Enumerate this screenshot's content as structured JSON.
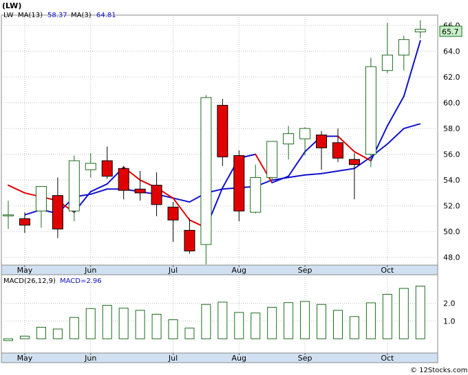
{
  "header": {
    "ticker": "(LW)",
    "legend_ticker": "LW",
    "ma13_label": "MA(13)",
    "ma13_value": "58.37",
    "ma3_label": "MA(3)",
    "ma3_value": "64.81"
  },
  "price_tag": "65.7",
  "macd_header": {
    "label": "MACD(26,12,9)",
    "value_label": "MACD=2.96"
  },
  "watermark": "© 12Stocks.com",
  "colors": {
    "up": "#1a6b1a",
    "down": "#e00000",
    "ma13": "#1010cc",
    "ma3_up": "#1010cc",
    "ma3_down": "#e00000",
    "grid": "#c0c0c0",
    "macd_bar": "#1a6b1a",
    "price_tag_bg": "#c8f0c8",
    "axis_band": "#d0e0f0"
  },
  "chart_data": [
    {
      "type": "candlestick",
      "ylim": [
        47.4,
        66.8
      ],
      "y_ticks": [
        "66.0",
        "64.0",
        "62.0",
        "60.0",
        "58.0",
        "56.0",
        "54.0",
        "52.0",
        "50.0",
        "48.0"
      ],
      "y_tick_values": [
        66,
        64,
        62,
        60,
        58,
        56,
        54,
        52,
        50,
        48
      ],
      "x_labels": [
        "May",
        "Jun",
        "Jul",
        "Aug",
        "Sep",
        "Oct"
      ],
      "x_label_index": [
        1,
        5,
        10,
        14,
        18,
        23
      ],
      "candles": [
        {
          "o": 51.3,
          "h": 52.4,
          "l": 50.2,
          "c": 51.3
        },
        {
          "o": 51.0,
          "h": 51.5,
          "l": 49.9,
          "c": 50.5
        },
        {
          "o": 51.6,
          "h": 53.5,
          "l": 50.3,
          "c": 53.5
        },
        {
          "o": 52.8,
          "h": 54.2,
          "l": 49.5,
          "c": 50.2
        },
        {
          "o": 51.6,
          "h": 55.9,
          "l": 50.8,
          "c": 55.5
        },
        {
          "o": 54.8,
          "h": 56.1,
          "l": 54.2,
          "c": 55.3
        },
        {
          "o": 55.5,
          "h": 56.6,
          "l": 54.1,
          "c": 54.3
        },
        {
          "o": 54.9,
          "h": 55.1,
          "l": 52.5,
          "c": 53.2
        },
        {
          "o": 53.3,
          "h": 54.7,
          "l": 52.4,
          "c": 53.0
        },
        {
          "o": 53.6,
          "h": 54.6,
          "l": 51.2,
          "c": 52.1
        },
        {
          "o": 51.9,
          "h": 52.3,
          "l": 49.2,
          "c": 50.9
        },
        {
          "o": 50.1,
          "h": 51.0,
          "l": 48.3,
          "c": 48.5
        },
        {
          "o": 49.0,
          "h": 60.6,
          "l": 47.2,
          "c": 60.4
        },
        {
          "o": 59.8,
          "h": 60.3,
          "l": 55.1,
          "c": 55.8
        },
        {
          "o": 55.9,
          "h": 56.3,
          "l": 50.8,
          "c": 51.6
        },
        {
          "o": 51.5,
          "h": 55.2,
          "l": 51.4,
          "c": 54.2
        },
        {
          "o": 54.2,
          "h": 57.0,
          "l": 54.0,
          "c": 57.0
        },
        {
          "o": 56.8,
          "h": 58.2,
          "l": 55.6,
          "c": 57.6
        },
        {
          "o": 57.2,
          "h": 58.1,
          "l": 55.9,
          "c": 58.0
        },
        {
          "o": 57.5,
          "h": 57.8,
          "l": 54.8,
          "c": 56.5
        },
        {
          "o": 56.9,
          "h": 58.0,
          "l": 55.4,
          "c": 55.7
        },
        {
          "o": 55.6,
          "h": 56.1,
          "l": 52.5,
          "c": 55.2
        },
        {
          "o": 56.0,
          "h": 63.5,
          "l": 55.0,
          "c": 62.8
        },
        {
          "o": 62.5,
          "h": 66.2,
          "l": 62.3,
          "c": 63.7
        },
        {
          "o": 63.7,
          "h": 65.2,
          "l": 62.5,
          "c": 64.9
        },
        {
          "o": 65.5,
          "h": 66.4,
          "l": 65.0,
          "c": 65.7
        }
      ],
      "ma13": [
        null,
        51.3,
        51.7,
        51.4,
        52.7,
        52.9,
        53.3,
        53.3,
        53.1,
        52.9,
        52.6,
        52.3,
        53.0,
        53.3,
        53.4,
        53.5,
        54.0,
        54.2,
        54.4,
        54.5,
        54.7,
        54.9,
        55.8,
        56.8,
        58.0,
        58.37
      ],
      "ma3": [
        53.6,
        53.0,
        52.7,
        52.4,
        51.5,
        53.1,
        53.7,
        55.0,
        54.0,
        53.4,
        52.6,
        50.9,
        50.3,
        53.4,
        55.7,
        56.0,
        53.8,
        54.3,
        56.2,
        57.4,
        57.4,
        56.2,
        55.5,
        58.2,
        60.5,
        64.81
      ]
    },
    {
      "type": "bar",
      "title": "MACD(26,12,9)",
      "ylim": [
        -0.8,
        3.6
      ],
      "y_ticks": [
        "2.0",
        "1.0"
      ],
      "y_tick_values": [
        2,
        1
      ],
      "x_labels": [
        "May",
        "Jun",
        "Jul",
        "Aug",
        "Sep",
        "Oct"
      ],
      "x_label_index": [
        1,
        5,
        10,
        14,
        18,
        23
      ],
      "values": [
        -0.1,
        0.15,
        0.65,
        0.55,
        1.2,
        1.7,
        1.88,
        1.72,
        1.6,
        1.38,
        1.07,
        0.6,
        1.93,
        2.06,
        1.48,
        1.45,
        1.77,
        2.03,
        2.1,
        1.93,
        1.6,
        1.25,
        2.02,
        2.5,
        2.83,
        2.96
      ]
    }
  ]
}
